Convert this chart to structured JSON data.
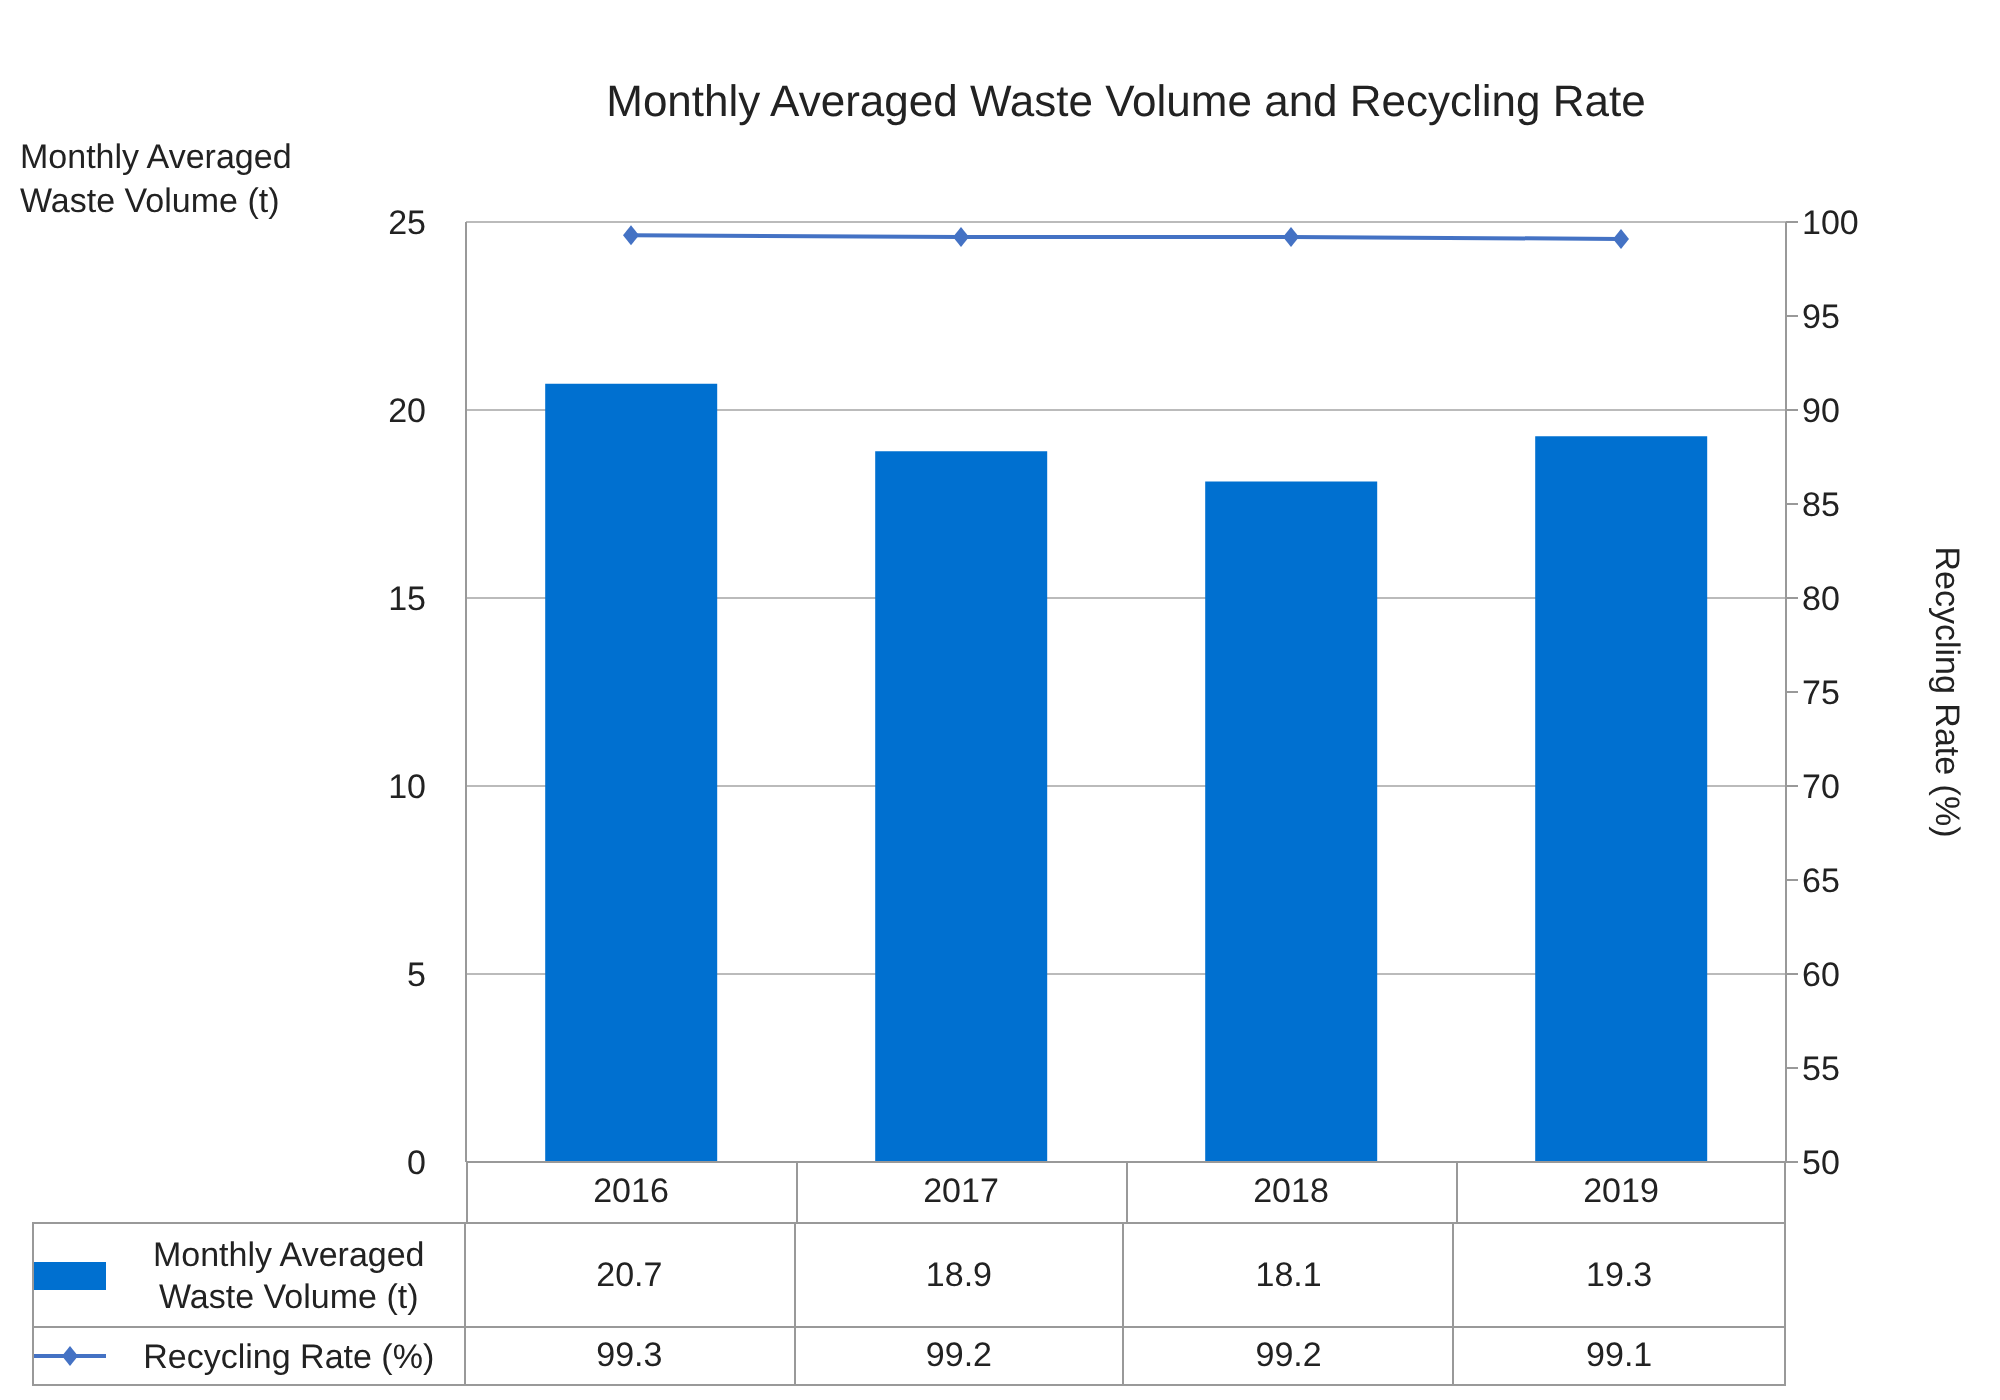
{
  "chart_data": {
    "type": "bar",
    "title": "Monthly Averaged Waste Volume and Recycling Rate",
    "ylabel": "Monthly Averaged Waste Volume (t)",
    "y2label": "Recycling Rate (%)",
    "categories": [
      "2016",
      "2017",
      "2018",
      "2019"
    ],
    "series": [
      {
        "name": "Monthly Averaged Waste Volume (t)",
        "color": "#0070d0",
        "values": [
          20.7,
          18.9,
          18.1,
          19.3
        ]
      },
      {
        "name": "Recycling Rate (%)",
        "type": "line",
        "axis": "y2",
        "color": "#4472c4",
        "marker": "diamond",
        "values": [
          99.3,
          99.2,
          99.2,
          99.1
        ]
      }
    ],
    "ylim": [
      0,
      25
    ],
    "yticks": [
      0,
      5,
      10,
      15,
      20,
      25
    ],
    "y2lim": [
      50,
      100
    ],
    "y2ticks": [
      50,
      55,
      60,
      65,
      70,
      75,
      80,
      85,
      90,
      95,
      100
    ],
    "grid": "y",
    "legend": "bottom",
    "data_labels": true
  }
}
